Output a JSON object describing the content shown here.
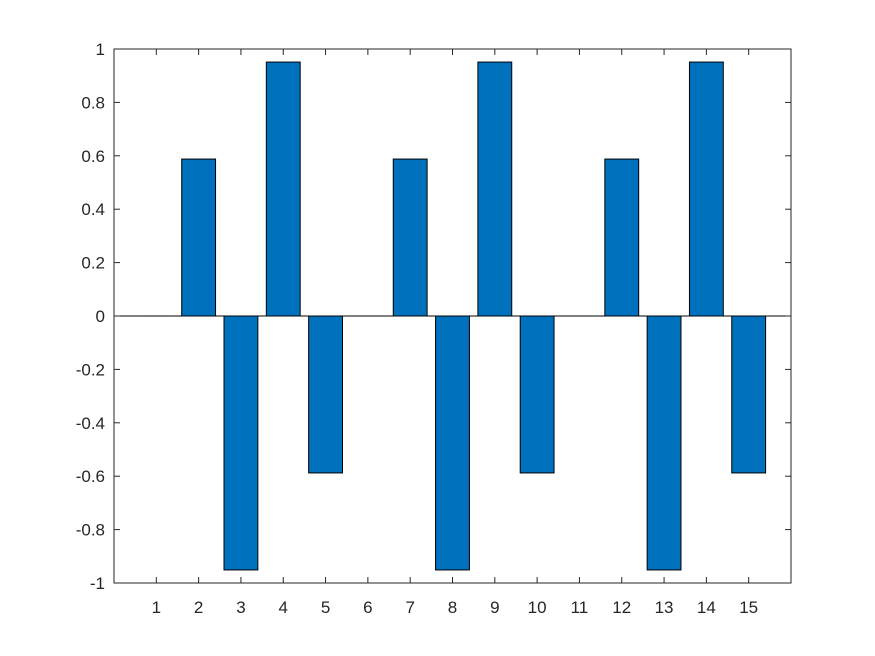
{
  "chart_data": {
    "type": "bar",
    "categories": [
      "1",
      "2",
      "3",
      "4",
      "5",
      "6",
      "7",
      "8",
      "9",
      "10",
      "11",
      "12",
      "13",
      "14",
      "15"
    ],
    "values": [
      0,
      0.5878,
      -0.9511,
      0.9511,
      -0.5878,
      0,
      0.5878,
      -0.9511,
      0.9511,
      -0.5878,
      0,
      0.5878,
      -0.9511,
      0.9511,
      -0.5878
    ],
    "title": "",
    "xlabel": "",
    "ylabel": "",
    "ylim": [
      -1,
      1
    ],
    "yticks": [
      "-1",
      "-0.8",
      "-0.6",
      "-0.4",
      "-0.2",
      "0",
      "0.2",
      "0.4",
      "0.6",
      "0.8",
      "1"
    ],
    "grid": false,
    "bar_color": "#0072bd",
    "edge_color": "#000000",
    "axis_color": "#262626"
  }
}
